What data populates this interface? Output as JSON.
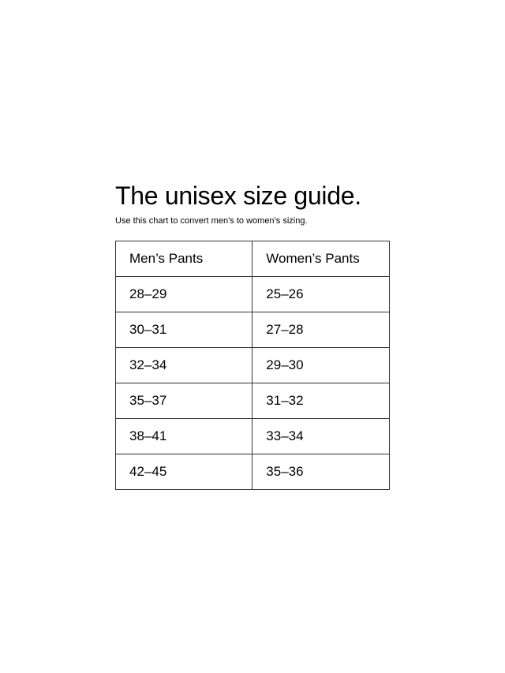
{
  "title": "The unisex size guide.",
  "subtitle": "Use this chart to convert men’s to women’s sizing.",
  "table": {
    "headers": [
      "Men’s Pants",
      "Women’s Pants"
    ],
    "rows": [
      [
        "28–29",
        "25–26"
      ],
      [
        "30–31",
        "27–28"
      ],
      [
        "32–34",
        "29–30"
      ],
      [
        "35–37",
        "31–32"
      ],
      [
        "38–41",
        "33–34"
      ],
      [
        "42–45",
        "35–36"
      ]
    ]
  }
}
